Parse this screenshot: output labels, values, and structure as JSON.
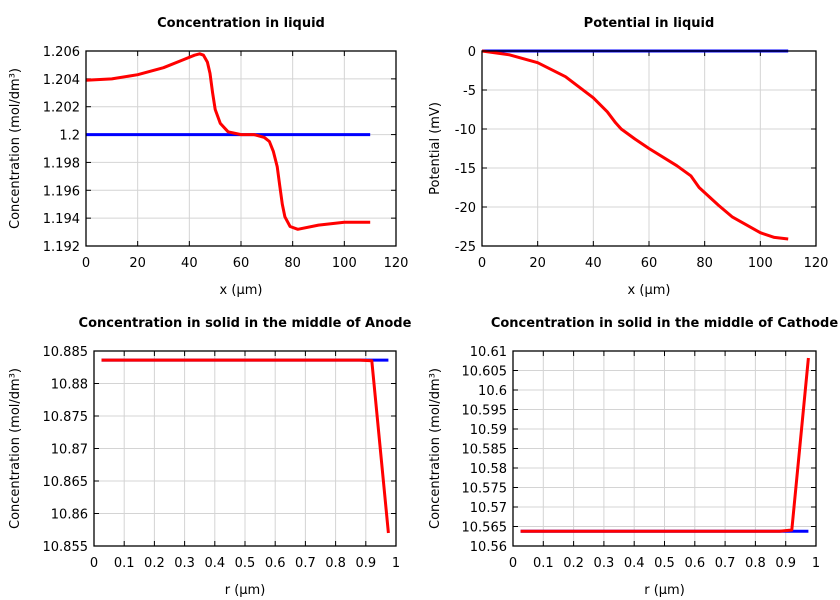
{
  "chart_data": [
    {
      "type": "line",
      "title": "Concentration in liquid",
      "xlabel": "x (µm)",
      "ylabel": "Concentration (mol/dm³)",
      "xlim": [
        0,
        120
      ],
      "ylim": [
        1.192,
        1.206
      ],
      "xticks": [
        "0",
        "20",
        "40",
        "60",
        "80",
        "100",
        "120"
      ],
      "yticks": [
        "1.192",
        "1.194",
        "1.196",
        "1.198",
        "1.2",
        "1.202",
        "1.204",
        "1.206"
      ],
      "grid": true,
      "series": [
        {
          "color": "#0000ff",
          "x": [
            0,
            110
          ],
          "y": [
            1.2,
            1.2
          ]
        },
        {
          "color": "#ff0000",
          "x": [
            0,
            10,
            20,
            30,
            38,
            42,
            44,
            45.5,
            47,
            48,
            49,
            50,
            52,
            55,
            60,
            65,
            69,
            71,
            72.5,
            74,
            75,
            76,
            77,
            79,
            82,
            90,
            100,
            110
          ],
          "y": [
            1.2039,
            1.204,
            1.2043,
            1.2048,
            1.2054,
            1.2057,
            1.2058,
            1.2057,
            1.2052,
            1.2044,
            1.203,
            1.2018,
            1.2008,
            1.2002,
            1.2,
            1.2,
            1.1998,
            1.1995,
            1.1988,
            1.1977,
            1.1963,
            1.195,
            1.1941,
            1.1934,
            1.1932,
            1.1935,
            1.1937,
            1.1937
          ]
        }
      ]
    },
    {
      "type": "line",
      "title": "Potential in liquid",
      "xlabel": "x (µm)",
      "ylabel": "Potential (mV)",
      "xlim": [
        0,
        120
      ],
      "ylim": [
        -25,
        0
      ],
      "xticks": [
        "0",
        "20",
        "40",
        "60",
        "80",
        "100",
        "120"
      ],
      "yticks": [
        "-25",
        "-20",
        "-15",
        "-10",
        "-5",
        "0"
      ],
      "grid": true,
      "series": [
        {
          "color": "#0000ff",
          "x": [
            0,
            110
          ],
          "y": [
            0,
            0
          ]
        },
        {
          "color": "#ff0000",
          "x": [
            0,
            10,
            20,
            30,
            40,
            45,
            48,
            50,
            55,
            60,
            70,
            75,
            78,
            85,
            90,
            100,
            105,
            110
          ],
          "y": [
            0,
            -0.5,
            -1.5,
            -3.3,
            -6.0,
            -7.8,
            -9.2,
            -10.0,
            -11.3,
            -12.5,
            -14.7,
            -16.0,
            -17.5,
            -19.8,
            -21.3,
            -23.3,
            -23.9,
            -24.1
          ]
        }
      ]
    },
    {
      "type": "line",
      "title": "Concentration in solid in the middle of Anode",
      "xlabel": "r (µm)",
      "ylabel": "Concentration (mol/dm³)",
      "xlim": [
        0,
        1
      ],
      "ylim": [
        10.855,
        10.885
      ],
      "xticks": [
        "0",
        "0.1",
        "0.2",
        "0.3",
        "0.4",
        "0.5",
        "0.6",
        "0.7",
        "0.8",
        "0.9",
        "1"
      ],
      "yticks": [
        "10.855",
        "10.86",
        "10.865",
        "10.87",
        "10.875",
        "10.88",
        "10.885"
      ],
      "grid": true,
      "series": [
        {
          "color": "#0000ff",
          "x": [
            0.025,
            0.975
          ],
          "y": [
            10.8836,
            10.8836
          ]
        },
        {
          "color": "#ff0000",
          "x": [
            0.025,
            0.88,
            0.92,
            0.975
          ],
          "y": [
            10.8836,
            10.8836,
            10.8835,
            10.857
          ]
        }
      ]
    },
    {
      "type": "line",
      "title": "Concentration in solid in the middle of Cathode",
      "xlabel": "r (µm)",
      "ylabel": "Concentration (mol/dm³)",
      "xlim": [
        0,
        1
      ],
      "ylim": [
        10.56,
        10.61
      ],
      "xticks": [
        "0",
        "0.1",
        "0.2",
        "0.3",
        "0.4",
        "0.5",
        "0.6",
        "0.7",
        "0.8",
        "0.9",
        "1"
      ],
      "yticks": [
        "10.56",
        "10.565",
        "10.57",
        "10.575",
        "10.58",
        "10.585",
        "10.59",
        "10.595",
        "10.6",
        "10.605",
        "10.61"
      ],
      "grid": true,
      "series": [
        {
          "color": "#0000ff",
          "x": [
            0.025,
            0.975
          ],
          "y": [
            10.5638,
            10.5638
          ]
        },
        {
          "color": "#ff0000",
          "x": [
            0.025,
            0.88,
            0.92,
            0.975
          ],
          "y": [
            10.5638,
            10.5638,
            10.5641,
            10.6082
          ]
        }
      ]
    }
  ]
}
